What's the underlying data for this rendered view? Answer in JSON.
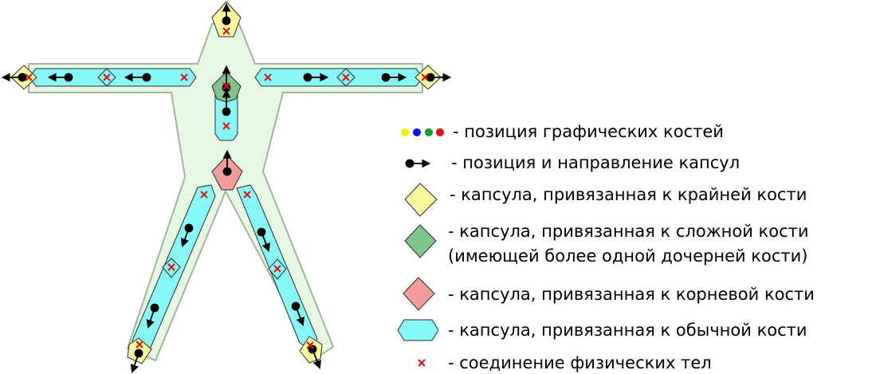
{
  "colors": {
    "body_fill": "#e6f8e4",
    "body_stroke": "#9fb59c",
    "regular_capsule": "#88f7f7",
    "end_capsule": "#f9f99c",
    "complex_capsule": "#7fc48a",
    "root_capsule": "#f49b9b",
    "joint_mark": "#e01010",
    "bone_yellow": "#f5ee00",
    "bone_blue": "#1010e0",
    "bone_green": "#10a030",
    "bone_red": "#e01010"
  },
  "legend": {
    "bone_positions": "- позиция графических костей",
    "capsule_direction": "- позиция и направление капсул",
    "end_bone_capsule": "- капсула, привязанная к крайней кости",
    "complex_bone_capsule_line1": "- капсула, привязанная к сложной кости",
    "complex_bone_capsule_line2": "(имеющей более одной дочерней кости)",
    "root_bone_capsule": "- капсула, привязанная к корневой кости",
    "regular_bone_capsule": "- капсула, привязанная к обычной кости",
    "physics_joint": "- соединение физических тел",
    "joint_symbol": "×"
  }
}
